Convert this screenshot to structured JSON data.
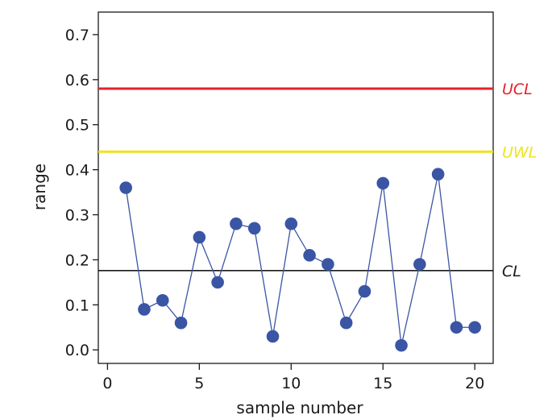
{
  "chart_data": {
    "type": "line",
    "title": "",
    "xlabel": "sample number",
    "ylabel": "range",
    "xlim": [
      -0.5,
      21
    ],
    "ylim": [
      -0.03,
      0.75
    ],
    "x_ticks": [
      0,
      5,
      10,
      15,
      20
    ],
    "x_tick_labels": [
      "0",
      "5",
      "10",
      "15",
      "20"
    ],
    "y_ticks": [
      0.0,
      0.1,
      0.2,
      0.3,
      0.4,
      0.5,
      0.6,
      0.7
    ],
    "y_tick_labels": [
      "0.0",
      "0.1",
      "0.2",
      "0.3",
      "0.4",
      "0.5",
      "0.6",
      "0.7"
    ],
    "grid": false,
    "series": [
      {
        "color": "#3a55a4",
        "x": [
          1,
          2,
          3,
          4,
          5,
          6,
          7,
          8,
          9,
          10,
          11,
          12,
          13,
          14,
          15,
          16,
          17,
          18,
          19,
          20
        ],
        "values": [
          0.36,
          0.09,
          0.11,
          0.06,
          0.25,
          0.15,
          0.28,
          0.27,
          0.03,
          0.28,
          0.21,
          0.19,
          0.06,
          0.13,
          0.37,
          0.01,
          0.19,
          0.39,
          0.05,
          0.05
        ]
      }
    ],
    "reference_lines": [
      {
        "label": "UCL",
        "value": 0.58,
        "color": "#e3222b"
      },
      {
        "label": "UWL",
        "value": 0.44,
        "color": "#f0e31c"
      },
      {
        "label": "CL",
        "value": 0.176,
        "color": "#1a1a1a"
      }
    ]
  }
}
